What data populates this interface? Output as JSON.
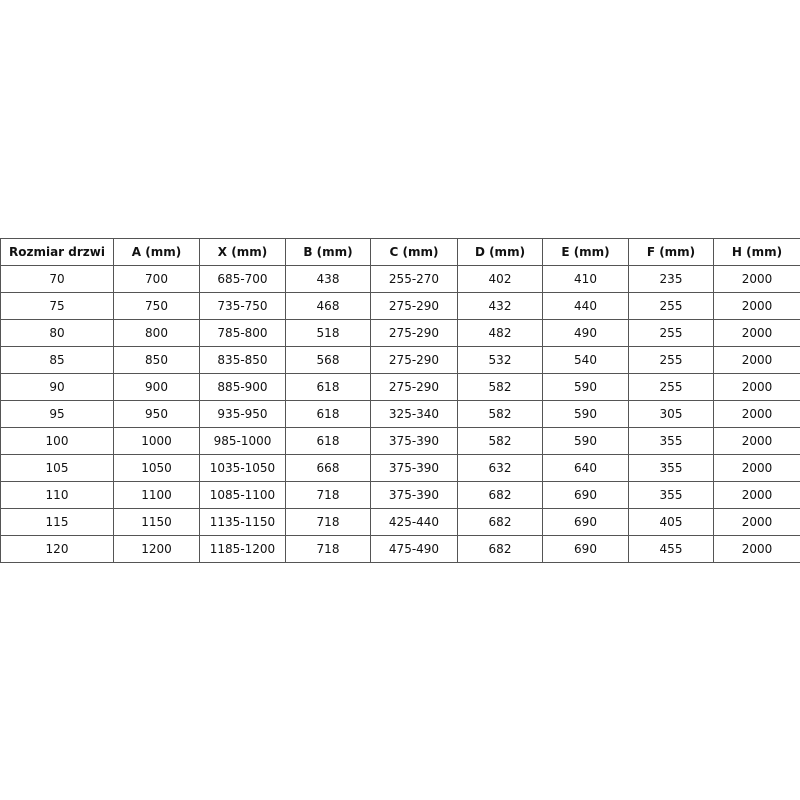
{
  "table": {
    "header": [
      "Rozmiar drzwi",
      "A (mm)",
      "X (mm)",
      "B (mm)",
      "C (mm)",
      "D (mm)",
      "E (mm)",
      "F (mm)",
      "H (mm)"
    ],
    "rows": [
      [
        "70",
        "700",
        "685-700",
        "438",
        "255-270",
        "402",
        "410",
        "235",
        "2000"
      ],
      [
        "75",
        "750",
        "735-750",
        "468",
        "275-290",
        "432",
        "440",
        "255",
        "2000"
      ],
      [
        "80",
        "800",
        "785-800",
        "518",
        "275-290",
        "482",
        "490",
        "255",
        "2000"
      ],
      [
        "85",
        "850",
        "835-850",
        "568",
        "275-290",
        "532",
        "540",
        "255",
        "2000"
      ],
      [
        "90",
        "900",
        "885-900",
        "618",
        "275-290",
        "582",
        "590",
        "255",
        "2000"
      ],
      [
        "95",
        "950",
        "935-950",
        "618",
        "325-340",
        "582",
        "590",
        "305",
        "2000"
      ],
      [
        "100",
        "1000",
        "985-1000",
        "618",
        "375-390",
        "582",
        "590",
        "355",
        "2000"
      ],
      [
        "105",
        "1050",
        "1035-1050",
        "668",
        "375-390",
        "632",
        "640",
        "355",
        "2000"
      ],
      [
        "110",
        "1100",
        "1085-1100",
        "718",
        "375-390",
        "682",
        "690",
        "355",
        "2000"
      ],
      [
        "115",
        "1150",
        "1135-1150",
        "718",
        "425-440",
        "682",
        "690",
        "405",
        "2000"
      ],
      [
        "120",
        "1200",
        "1185-1200",
        "718",
        "475-490",
        "682",
        "690",
        "455",
        "2000"
      ]
    ]
  }
}
